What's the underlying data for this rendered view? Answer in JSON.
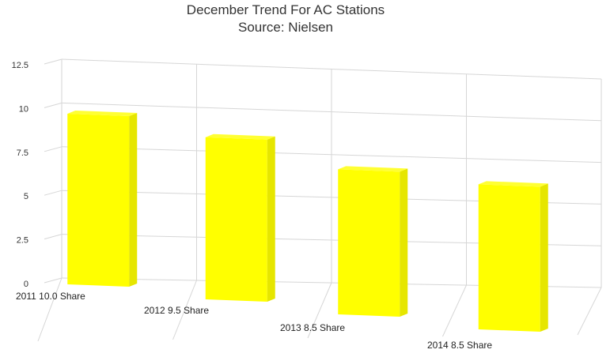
{
  "chart_data": {
    "type": "bar",
    "title": "December Trend For AC Stations",
    "subtitle": "Source: Nielsen",
    "categories": [
      "2011 10.0 Share",
      "2012 9.5 Share",
      "2013 8.5 Share",
      "2014 8.5 Share"
    ],
    "values": [
      10.0,
      9.5,
      8.5,
      8.5
    ],
    "yticks": [
      "0",
      "2.5",
      "5",
      "7.5",
      "10",
      "12.5"
    ],
    "ylim": [
      0,
      12.5
    ],
    "xlabel": "",
    "ylabel": "",
    "grid": true,
    "legend": "none",
    "bar_color": "#ffff00",
    "bar_side_color": "#e6e600",
    "bar_top_color": "#ffff33",
    "grid_color": "#d6d6d6"
  }
}
